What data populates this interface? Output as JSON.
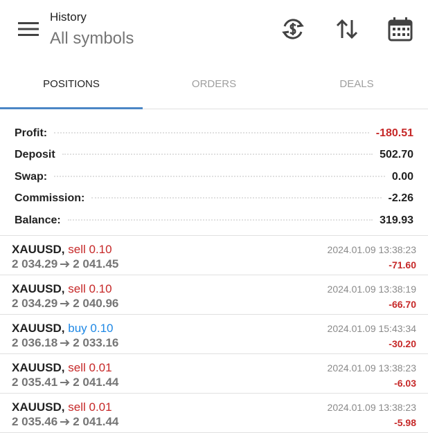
{
  "header": {
    "title": "History",
    "subtitle": "All symbols"
  },
  "tabs": [
    "POSITIONS",
    "ORDERS",
    "DEALS"
  ],
  "summary": [
    {
      "label": "Profit:",
      "value": "-180.51",
      "color": "#c62828"
    },
    {
      "label": "Deposit",
      "value": "502.70",
      "color": "#212121"
    },
    {
      "label": "Swap:",
      "value": "0.00",
      "color": "#212121"
    },
    {
      "label": "Commission:",
      "value": "-2.26",
      "color": "#212121"
    },
    {
      "label": "Balance:",
      "value": "319.93",
      "color": "#212121"
    }
  ],
  "positions": [
    {
      "symbol": "XAUUSD,",
      "side": "sell",
      "volume": "0.10",
      "color": "#c62828",
      "open": "2 034.29",
      "close": "2 041.45",
      "time": "2024.01.09 13:38:23",
      "profit": "-71.60"
    },
    {
      "symbol": "XAUUSD,",
      "side": "sell",
      "volume": "0.10",
      "color": "#c62828",
      "open": "2 034.29",
      "close": "2 040.96",
      "time": "2024.01.09 13:38:19",
      "profit": "-66.70"
    },
    {
      "symbol": "XAUUSD,",
      "side": "buy",
      "volume": "0.10",
      "color": "#1e88e5",
      "open": "2 036.18",
      "close": "2 033.16",
      "time": "2024.01.09 15:43:34",
      "profit": "-30.20"
    },
    {
      "symbol": "XAUUSD,",
      "side": "sell",
      "volume": "0.01",
      "color": "#c62828",
      "open": "2 035.41",
      "close": "2 041.44",
      "time": "2024.01.09 13:38:23",
      "profit": "-6.03"
    },
    {
      "symbol": "XAUUSD,",
      "side": "sell",
      "volume": "0.01",
      "color": "#c62828",
      "open": "2 035.46",
      "close": "2 041.44",
      "time": "2024.01.09 13:38:23",
      "profit": "-5.98"
    }
  ]
}
